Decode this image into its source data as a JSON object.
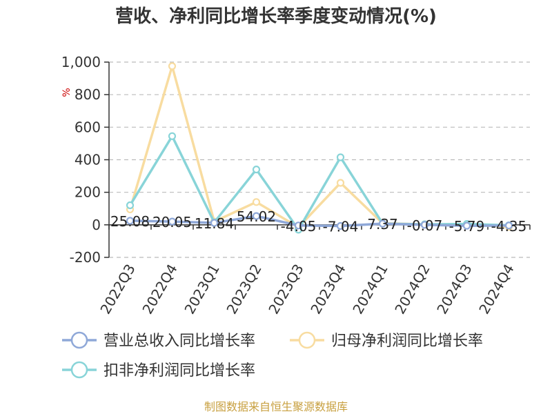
{
  "title": "营收、净利同比增长率季度变动情况(%)",
  "source": "制图数据来自恒生聚源数据库",
  "chart_data": {
    "type": "line",
    "title": "营收、净利同比增长率季度变动情况(%)",
    "ylabel": "%",
    "ylim": [
      -200,
      1000
    ],
    "yticks": [
      -200,
      0,
      200,
      400,
      600,
      800,
      1000
    ],
    "ytick_labels": [
      "-200",
      "0",
      "200",
      "400",
      "600",
      "800",
      "1,000"
    ],
    "grid": true,
    "legend_position": "bottom",
    "categories": [
      "2022Q3",
      "2022Q4",
      "2023Q1",
      "2023Q2",
      "2023Q3",
      "2023Q4",
      "2024Q1",
      "2024Q2",
      "2024Q3",
      "2024Q4"
    ],
    "series": [
      {
        "name": "营业总收入同比增长率",
        "color": "#8fa8d8",
        "values": [
          25.08,
          20.05,
          11.84,
          54.02,
          -4.05,
          -7.04,
          7.37,
          -0.07,
          -5.79,
          -4.35
        ],
        "labels": [
          "25.08",
          "20.05",
          "11.84",
          "54.02",
          "-4.05",
          "-7.04",
          "7.37",
          "-0.07",
          "-5.79",
          "-4.35"
        ]
      },
      {
        "name": "归母净利润同比增长率",
        "color": "#f8dca0",
        "values": [
          95,
          975,
          20,
          140,
          -15,
          258,
          10,
          3,
          2,
          -12
        ]
      },
      {
        "name": "扣非净利润同比增长率",
        "color": "#88d4d8",
        "values": [
          120,
          545,
          15,
          340,
          -30,
          415,
          8,
          3,
          5,
          -3
        ]
      }
    ]
  }
}
